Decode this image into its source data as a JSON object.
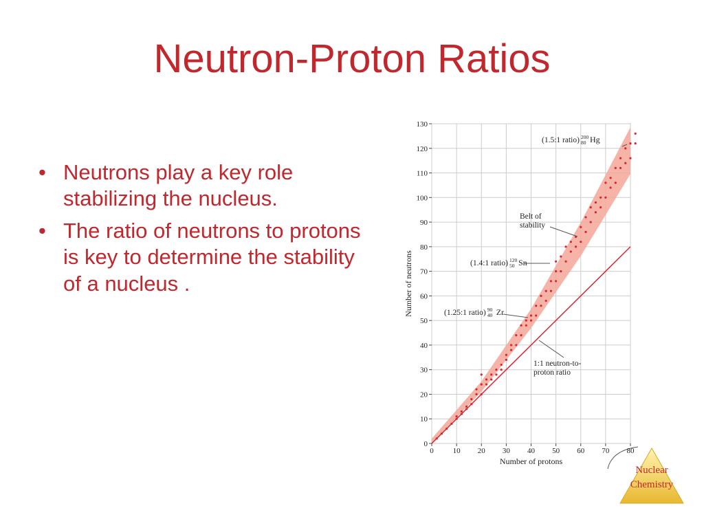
{
  "slide": {
    "title": "Neutron-Proton Ratios",
    "bullets": [
      "Neutrons play a key role stabilizing the nucleus.",
      "The ratio of neutrons to protons is key to determine the stability of a nucleus ."
    ],
    "logo": [
      "Nuclear",
      "Chemistry"
    ]
  },
  "chart_data": {
    "type": "scatter",
    "x_label": "Number of protons",
    "y_label": "Number of neutrons",
    "xlim": [
      0,
      80
    ],
    "xticks": [
      0,
      10,
      20,
      30,
      40,
      50,
      60,
      70,
      80
    ],
    "ylim": [
      0,
      130
    ],
    "yticks": [
      0,
      10,
      20,
      30,
      40,
      50,
      60,
      70,
      80,
      90,
      100,
      110,
      120,
      130
    ],
    "grid": true,
    "color": "#d9262e",
    "x": [
      2,
      4,
      6,
      8,
      10,
      10,
      12,
      12,
      14,
      14,
      16,
      16,
      18,
      18,
      20,
      20,
      20,
      22,
      22,
      24,
      24,
      26,
      26,
      28,
      28,
      30,
      30,
      32,
      32,
      34,
      34,
      36,
      36,
      38,
      38,
      40,
      40,
      42,
      42,
      44,
      44,
      46,
      46,
      48,
      48,
      50,
      50,
      50,
      52,
      52,
      54,
      54,
      56,
      56,
      58,
      58,
      60,
      60,
      62,
      62,
      64,
      64,
      66,
      66,
      68,
      68,
      70,
      70,
      72,
      72,
      74,
      74,
      76,
      76,
      78,
      78,
      80,
      80,
      82,
      82
    ],
    "values": [
      2,
      4,
      6,
      8,
      10,
      11,
      12,
      13,
      14,
      15,
      16,
      18,
      20,
      22,
      20,
      24,
      28,
      24,
      26,
      26,
      28,
      28,
      30,
      30,
      32,
      34,
      36,
      38,
      40,
      40,
      44,
      44,
      48,
      48,
      50,
      50,
      52,
      52,
      56,
      56,
      60,
      58,
      62,
      62,
      66,
      66,
      70,
      74,
      70,
      76,
      74,
      80,
      78,
      82,
      80,
      84,
      82,
      88,
      86,
      92,
      90,
      96,
      94,
      98,
      96,
      100,
      100,
      106,
      104,
      108,
      106,
      112,
      112,
      116,
      114,
      120,
      116,
      122,
      122,
      126
    ],
    "reference_line": {
      "x": [
        0,
        80
      ],
      "values": [
        0,
        80
      ],
      "color": "#d9262e"
    },
    "annotations": [
      {
        "ratio": "(1.5:1 ratio)",
        "mass": "200",
        "atomic": "80",
        "symbol": "Hg"
      },
      {
        "lines": [
          "Belt of",
          "stability"
        ]
      },
      {
        "ratio": "(1.4:1 ratio)",
        "mass": "120",
        "atomic": "50",
        "symbol": "Sn"
      },
      {
        "ratio": "(1.25:1 ratio)",
        "mass": "90",
        "atomic": "40",
        "symbol": "Zr"
      },
      {
        "lines": [
          "1:1 neutron-to-",
          "proton ratio"
        ]
      }
    ]
  }
}
